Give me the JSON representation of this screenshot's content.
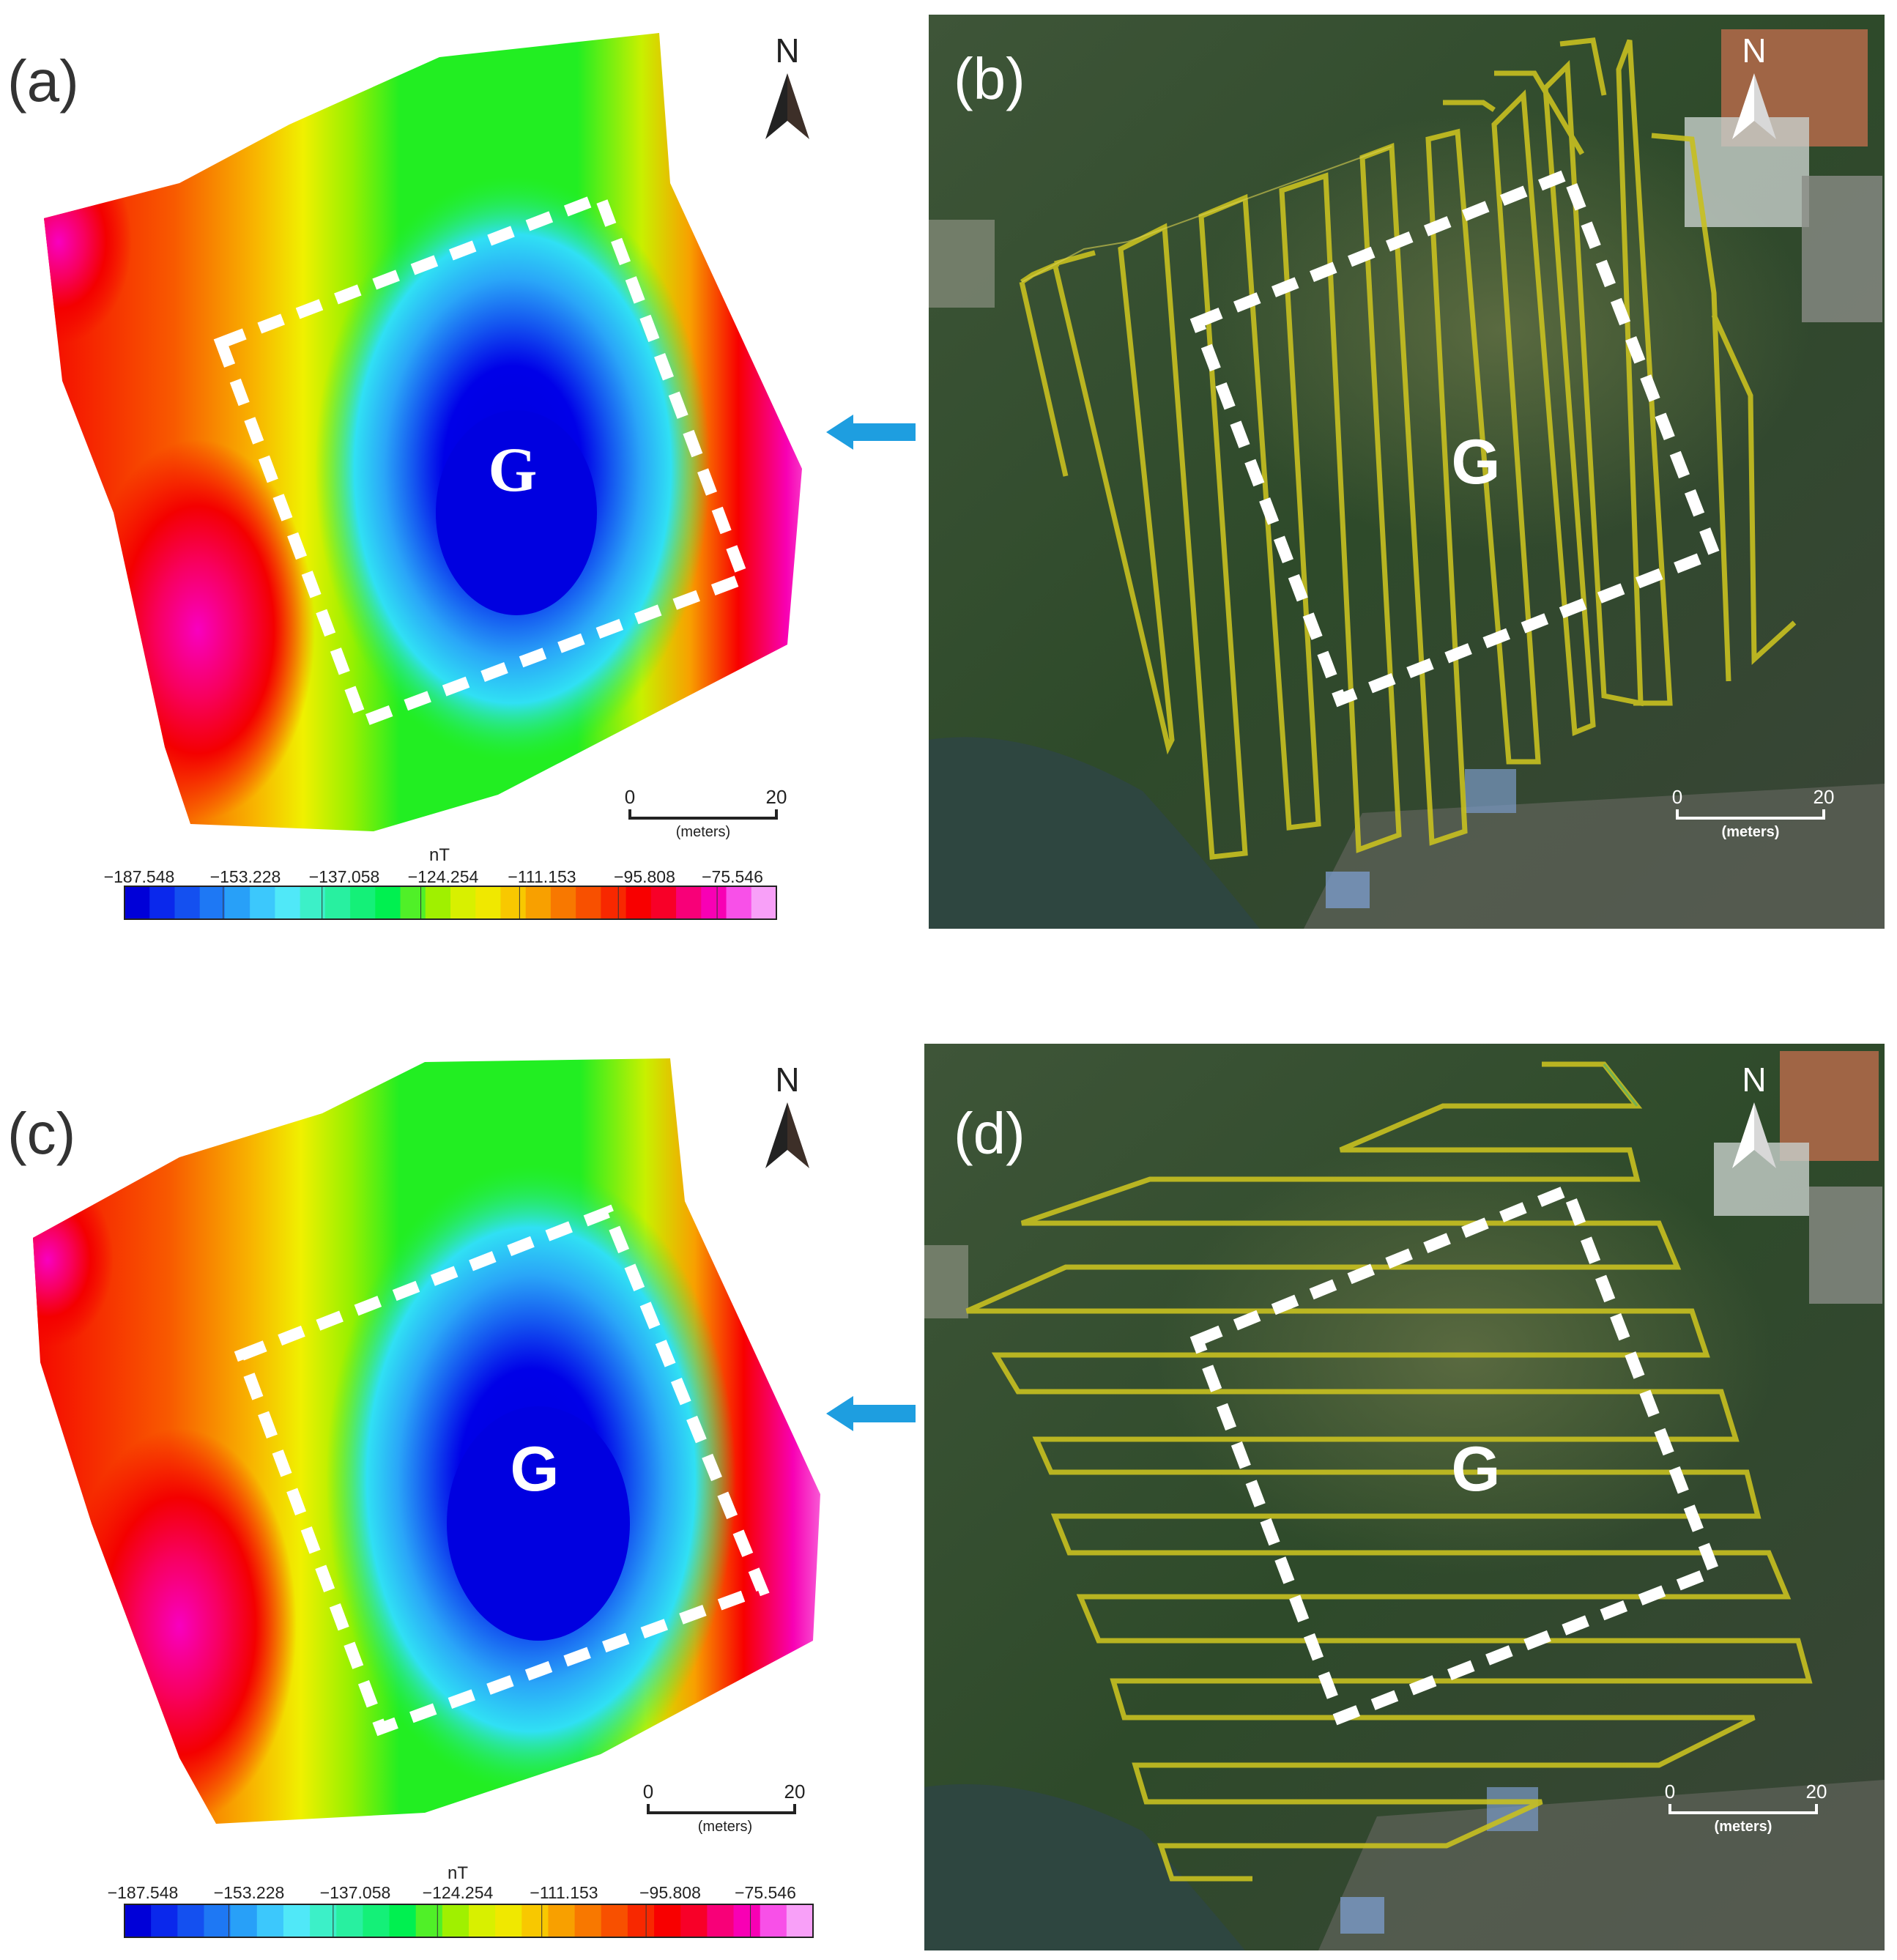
{
  "panels": [
    {
      "id": "a",
      "label": "(a)",
      "type": "magnetic-anomaly-map",
      "north_label": "N",
      "target_label": "G",
      "scale_start": "0",
      "scale_end": "20",
      "scale_unit": "(meters)",
      "flight_direction_arrow": "right-to-left"
    },
    {
      "id": "b",
      "label": "(b)",
      "type": "satellite-flight-path",
      "survey_line_orientation": "north-south",
      "north_label": "N",
      "target_label": "G",
      "scale_start": "0",
      "scale_end": "20",
      "scale_unit": "(meters)"
    },
    {
      "id": "c",
      "label": "(c)",
      "type": "magnetic-anomaly-map",
      "north_label": "N",
      "target_label": "G",
      "scale_start": "0",
      "scale_end": "20",
      "scale_unit": "(meters)",
      "flight_direction_arrow": "right-to-left"
    },
    {
      "id": "d",
      "label": "(d)",
      "type": "satellite-flight-path",
      "survey_line_orientation": "east-west",
      "north_label": "N",
      "target_label": "G",
      "scale_start": "0",
      "scale_end": "20",
      "scale_unit": "(meters)"
    }
  ],
  "colorbar": {
    "unit": "nT",
    "ticks": [
      "−187.548",
      "−153.228",
      "−137.058",
      "−124.254",
      "−111.153",
      "−95.808",
      "−75.546"
    ],
    "colors": [
      "#0000d8",
      "#0a28ec",
      "#1450f0",
      "#1e78f4",
      "#28a0f8",
      "#3cc8fc",
      "#50e8f8",
      "#3cf0c8",
      "#28f0a0",
      "#14f078",
      "#00f050",
      "#50f028",
      "#a0f000",
      "#d8f000",
      "#f0e800",
      "#f8c800",
      "#f8a000",
      "#f87800",
      "#f85000",
      "#f82800",
      "#f80000",
      "#f80028",
      "#f80078",
      "#f800b4",
      "#f850e8",
      "#f8a0f8"
    ]
  },
  "map_colors": {
    "deep_blue": "#0000e0",
    "green": "#22ee22",
    "yellow": "#f8f000",
    "red": "#f40000",
    "magenta": "#f800c0",
    "pink": "#f8a0f0",
    "flight_line": "#c8c020",
    "dashed_box": "#ffffff",
    "arrow": "#1e9ee0"
  }
}
